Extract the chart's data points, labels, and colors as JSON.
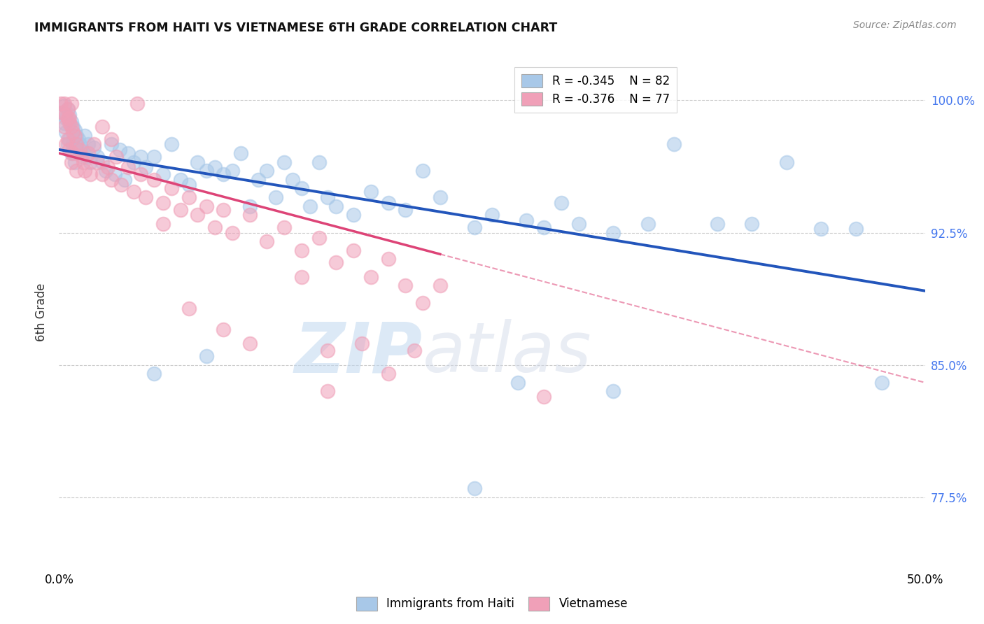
{
  "title": "IMMIGRANTS FROM HAITI VS VIETNAMESE 6TH GRADE CORRELATION CHART",
  "source": "Source: ZipAtlas.com",
  "ylabel": "6th Grade",
  "ytick_labels": [
    "77.5%",
    "85.0%",
    "92.5%",
    "100.0%"
  ],
  "ytick_values": [
    0.775,
    0.85,
    0.925,
    1.0
  ],
  "xlim": [
    0.0,
    0.5
  ],
  "ylim": [
    0.735,
    1.025
  ],
  "legend_haiti_R": -0.345,
  "legend_haiti_N": 82,
  "legend_viet_R": -0.376,
  "legend_viet_N": 77,
  "haiti_color": "#a8c8e8",
  "vietnamese_color": "#f0a0b8",
  "haiti_line_color": "#2255bb",
  "vietnamese_line_color": "#dd4477",
  "watermark_zip": "ZIP",
  "watermark_atlas": "atlas",
  "haiti_points": [
    [
      0.002,
      0.993
    ],
    [
      0.003,
      0.987
    ],
    [
      0.003,
      0.997
    ],
    [
      0.004,
      0.99
    ],
    [
      0.004,
      0.982
    ],
    [
      0.005,
      0.995
    ],
    [
      0.005,
      0.975
    ],
    [
      0.006,
      0.992
    ],
    [
      0.006,
      0.978
    ],
    [
      0.007,
      0.988
    ],
    [
      0.007,
      0.97
    ],
    [
      0.008,
      0.985
    ],
    [
      0.008,
      0.975
    ],
    [
      0.009,
      0.983
    ],
    [
      0.009,
      0.965
    ],
    [
      0.01,
      0.98
    ],
    [
      0.01,
      0.972
    ],
    [
      0.011,
      0.978
    ],
    [
      0.012,
      0.975
    ],
    [
      0.013,
      0.972
    ],
    [
      0.014,
      0.97
    ],
    [
      0.015,
      0.98
    ],
    [
      0.016,
      0.968
    ],
    [
      0.017,
      0.975
    ],
    [
      0.018,
      0.965
    ],
    [
      0.02,
      0.973
    ],
    [
      0.022,
      0.968
    ],
    [
      0.025,
      0.965
    ],
    [
      0.027,
      0.96
    ],
    [
      0.03,
      0.975
    ],
    [
      0.032,
      0.958
    ],
    [
      0.035,
      0.972
    ],
    [
      0.038,
      0.955
    ],
    [
      0.04,
      0.97
    ],
    [
      0.043,
      0.965
    ],
    [
      0.047,
      0.968
    ],
    [
      0.05,
      0.962
    ],
    [
      0.055,
      0.968
    ],
    [
      0.06,
      0.958
    ],
    [
      0.065,
      0.975
    ],
    [
      0.07,
      0.955
    ],
    [
      0.075,
      0.952
    ],
    [
      0.08,
      0.965
    ],
    [
      0.085,
      0.96
    ],
    [
      0.09,
      0.962
    ],
    [
      0.095,
      0.958
    ],
    [
      0.1,
      0.96
    ],
    [
      0.105,
      0.97
    ],
    [
      0.11,
      0.94
    ],
    [
      0.115,
      0.955
    ],
    [
      0.12,
      0.96
    ],
    [
      0.125,
      0.945
    ],
    [
      0.13,
      0.965
    ],
    [
      0.135,
      0.955
    ],
    [
      0.14,
      0.95
    ],
    [
      0.145,
      0.94
    ],
    [
      0.15,
      0.965
    ],
    [
      0.155,
      0.945
    ],
    [
      0.16,
      0.94
    ],
    [
      0.17,
      0.935
    ],
    [
      0.18,
      0.948
    ],
    [
      0.19,
      0.942
    ],
    [
      0.2,
      0.938
    ],
    [
      0.21,
      0.96
    ],
    [
      0.22,
      0.945
    ],
    [
      0.24,
      0.928
    ],
    [
      0.25,
      0.935
    ],
    [
      0.27,
      0.932
    ],
    [
      0.28,
      0.928
    ],
    [
      0.29,
      0.942
    ],
    [
      0.3,
      0.93
    ],
    [
      0.32,
      0.925
    ],
    [
      0.34,
      0.93
    ],
    [
      0.355,
      0.975
    ],
    [
      0.38,
      0.93
    ],
    [
      0.4,
      0.93
    ],
    [
      0.42,
      0.965
    ],
    [
      0.44,
      0.927
    ],
    [
      0.46,
      0.927
    ],
    [
      0.475,
      0.84
    ],
    [
      0.32,
      0.835
    ],
    [
      0.24,
      0.78
    ],
    [
      0.265,
      0.84
    ],
    [
      0.055,
      0.845
    ],
    [
      0.085,
      0.855
    ]
  ],
  "viet_points": [
    [
      0.001,
      0.998
    ],
    [
      0.002,
      0.993
    ],
    [
      0.003,
      0.998
    ],
    [
      0.003,
      0.985
    ],
    [
      0.004,
      0.992
    ],
    [
      0.004,
      0.975
    ],
    [
      0.005,
      0.99
    ],
    [
      0.005,
      0.978
    ],
    [
      0.006,
      0.987
    ],
    [
      0.006,
      0.972
    ],
    [
      0.007,
      0.985
    ],
    [
      0.007,
      0.965
    ],
    [
      0.008,
      0.982
    ],
    [
      0.008,
      0.97
    ],
    [
      0.009,
      0.98
    ],
    [
      0.01,
      0.975
    ],
    [
      0.01,
      0.96
    ],
    [
      0.012,
      0.972
    ],
    [
      0.013,
      0.968
    ],
    [
      0.014,
      0.965
    ],
    [
      0.015,
      0.96
    ],
    [
      0.017,
      0.97
    ],
    [
      0.018,
      0.958
    ],
    [
      0.02,
      0.975
    ],
    [
      0.022,
      0.965
    ],
    [
      0.025,
      0.958
    ],
    [
      0.028,
      0.962
    ],
    [
      0.03,
      0.955
    ],
    [
      0.033,
      0.968
    ],
    [
      0.036,
      0.952
    ],
    [
      0.04,
      0.962
    ],
    [
      0.043,
      0.948
    ],
    [
      0.047,
      0.958
    ],
    [
      0.05,
      0.945
    ],
    [
      0.055,
      0.955
    ],
    [
      0.06,
      0.942
    ],
    [
      0.065,
      0.95
    ],
    [
      0.07,
      0.938
    ],
    [
      0.075,
      0.945
    ],
    [
      0.08,
      0.935
    ],
    [
      0.085,
      0.94
    ],
    [
      0.09,
      0.928
    ],
    [
      0.095,
      0.938
    ],
    [
      0.1,
      0.925
    ],
    [
      0.11,
      0.935
    ],
    [
      0.12,
      0.92
    ],
    [
      0.13,
      0.928
    ],
    [
      0.14,
      0.915
    ],
    [
      0.15,
      0.922
    ],
    [
      0.16,
      0.908
    ],
    [
      0.17,
      0.915
    ],
    [
      0.18,
      0.9
    ],
    [
      0.19,
      0.91
    ],
    [
      0.2,
      0.895
    ],
    [
      0.21,
      0.885
    ],
    [
      0.22,
      0.895
    ],
    [
      0.007,
      0.998
    ],
    [
      0.006,
      0.99
    ],
    [
      0.005,
      0.995
    ],
    [
      0.03,
      0.978
    ],
    [
      0.025,
      0.985
    ],
    [
      0.045,
      0.998
    ],
    [
      0.06,
      0.93
    ],
    [
      0.075,
      0.882
    ],
    [
      0.095,
      0.87
    ],
    [
      0.11,
      0.862
    ],
    [
      0.14,
      0.9
    ],
    [
      0.155,
      0.858
    ],
    [
      0.175,
      0.862
    ],
    [
      0.19,
      0.845
    ],
    [
      0.205,
      0.858
    ],
    [
      0.28,
      0.832
    ],
    [
      0.155,
      0.835
    ]
  ]
}
